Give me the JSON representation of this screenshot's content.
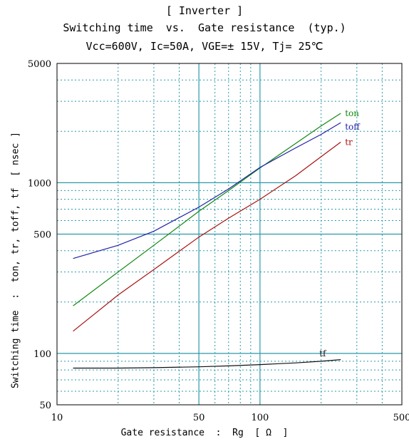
{
  "chart_data": {
    "type": "line",
    "title": "[ Inverter ]",
    "subtitle": "Switching time  vs.  Gate resistance  (typ.)",
    "conditions": "Vcc=600V, Ic=50A, VGE=± 15V, Tj= 25℃",
    "xlabel": "Gate resistance  :  Rg  [ Ω  ]",
    "ylabel": "Switching time  :  ton, tr, toff, tf  [ nsec ]",
    "xscale": "log",
    "yscale": "log",
    "xlim": [
      10,
      500
    ],
    "ylim": [
      50,
      5000
    ],
    "xticks": [
      10,
      50,
      100,
      500
    ],
    "yticks": [
      50,
      100,
      500,
      1000,
      5000
    ],
    "grid": true,
    "series": [
      {
        "name": "ton",
        "color": "#118811",
        "x": [
          12,
          20,
          30,
          50,
          70,
          100,
          150,
          200,
          250
        ],
        "y": [
          190,
          300,
          430,
          680,
          900,
          1220,
          1700,
          2150,
          2550
        ]
      },
      {
        "name": "toff",
        "color": "#2222aa",
        "x": [
          12,
          20,
          30,
          50,
          70,
          100,
          150,
          200,
          250
        ],
        "y": [
          360,
          430,
          520,
          720,
          920,
          1230,
          1600,
          1920,
          2250
        ]
      },
      {
        "name": "tr",
        "color": "#aa1111",
        "x": [
          12,
          20,
          30,
          50,
          70,
          100,
          150,
          200,
          250
        ],
        "y": [
          135,
          220,
          310,
          480,
          620,
          800,
          1100,
          1420,
          1730
        ]
      },
      {
        "name": "tf",
        "color": "#111111",
        "x": [
          12,
          20,
          30,
          50,
          70,
          100,
          150,
          200,
          250
        ],
        "y": [
          82,
          82,
          82.5,
          83.5,
          84.5,
          86,
          88,
          90,
          92
        ]
      }
    ]
  }
}
